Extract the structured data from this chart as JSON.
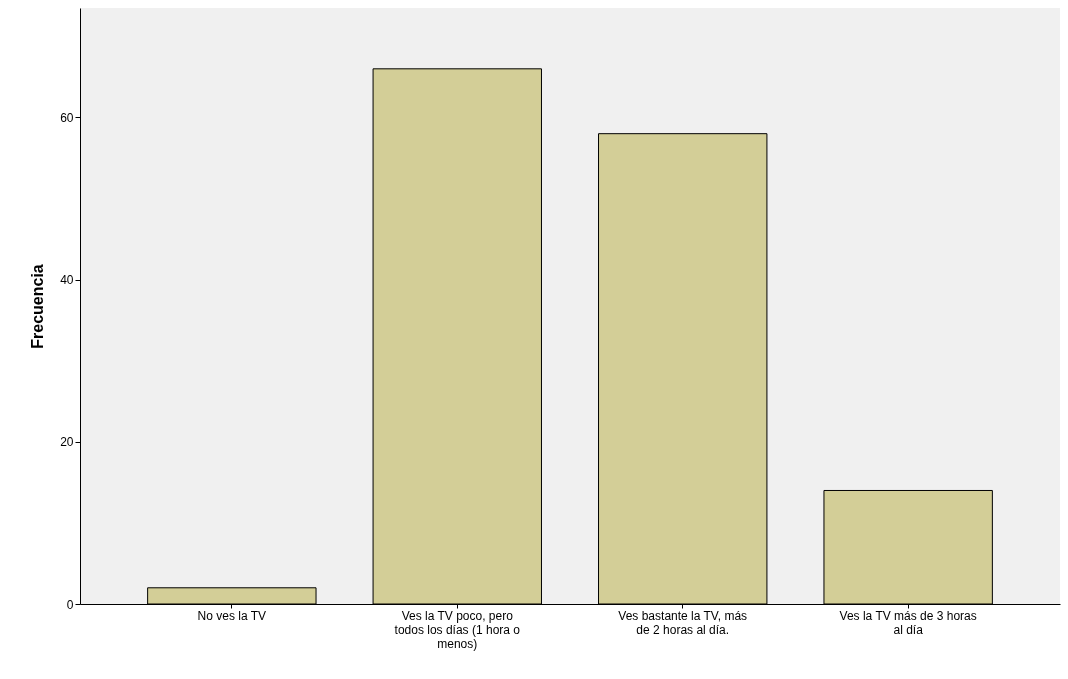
{
  "chart_data": {
    "type": "bar",
    "ylabel": "Frecuencia",
    "categories": [
      "No ves la TV",
      "Ves la TV poco, pero todos los días (1 hora o menos)",
      "Ves bastante la TV, más de 2 horas al día.",
      "Ves la TV más de 3 horas al día"
    ],
    "values": [
      2,
      66,
      58,
      14
    ],
    "color": "#d3ce97",
    "ylim": [
      0,
      73.5
    ],
    "yticks": [
      0,
      20,
      40,
      60
    ]
  }
}
